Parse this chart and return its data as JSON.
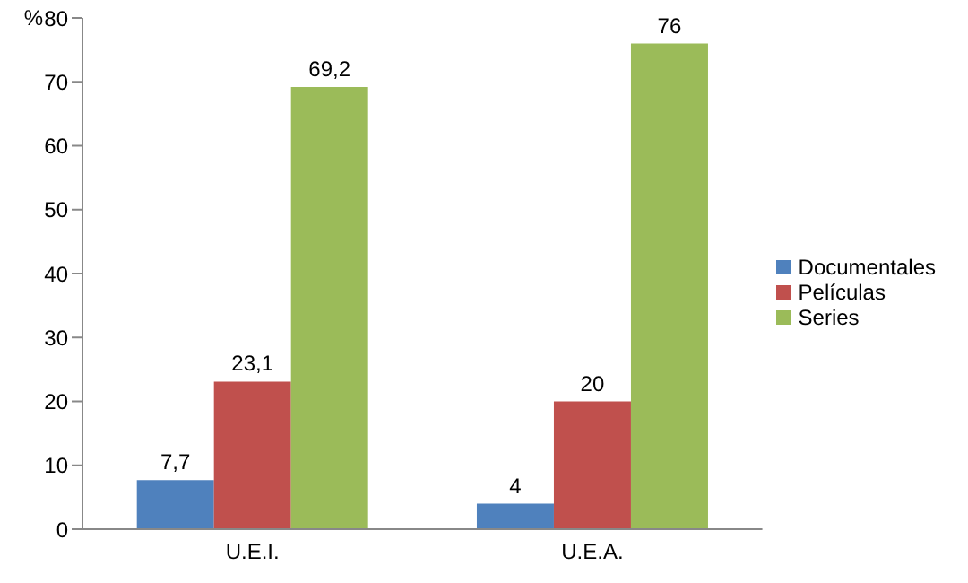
{
  "chart_data": {
    "type": "bar",
    "ylabel": "%",
    "categories": [
      "U.E.I.",
      "U.E.A."
    ],
    "series": [
      {
        "name": "Documentales",
        "color": "#4f81bd",
        "values": [
          7.7,
          4
        ],
        "value_labels": [
          "7,7",
          "4"
        ]
      },
      {
        "name": "Películas",
        "color": "#c0504d",
        "values": [
          23.1,
          20
        ],
        "value_labels": [
          "23,1",
          "20"
        ]
      },
      {
        "name": "Series",
        "color": "#9bbb59",
        "values": [
          69.2,
          76
        ],
        "value_labels": [
          "69,2",
          "76"
        ]
      }
    ],
    "ylim": [
      0,
      80
    ],
    "yticks": [
      0,
      10,
      20,
      30,
      40,
      50,
      60,
      70,
      80
    ],
    "legend": "right",
    "grid": false
  }
}
